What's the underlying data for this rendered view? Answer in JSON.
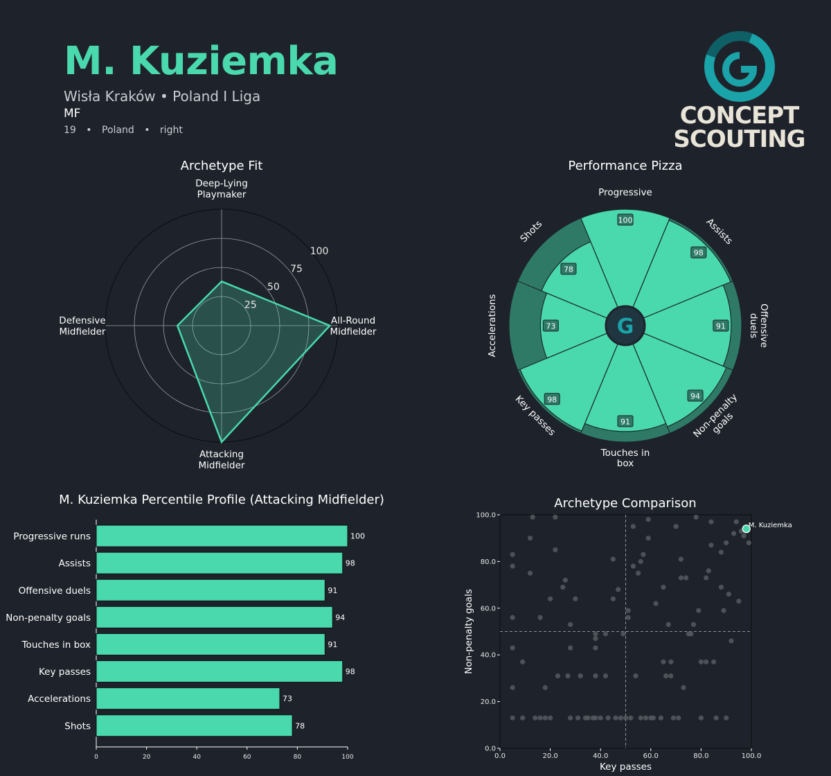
{
  "header": {
    "name": "M. Kuziemka",
    "club_league": "Wisła Kraków • Poland I Liga",
    "position": "MF",
    "age": "19",
    "sep1": "•",
    "nationality": "Poland",
    "sep2": "•",
    "foot": "right"
  },
  "logo": {
    "line1": "CONCEPT",
    "line2": "SCOUTING",
    "glyph": "G",
    "accent": "#1aa3a8"
  },
  "colors": {
    "background": "#1e232b",
    "accent": "#4ad9ad",
    "pizza_fill": "#4ad9ad",
    "pizza_track": "#2f7a67",
    "scatter_points": "#555a60"
  },
  "chart_data": [
    {
      "id": "radar",
      "type": "radar",
      "title": "Archetype Fit",
      "axes": [
        {
          "label": [
            "Deep-Lying",
            "Playmaker"
          ],
          "value": 38
        },
        {
          "label": [
            "All-Round",
            "Midfielder"
          ],
          "value": 93
        },
        {
          "label": [
            "Attacking",
            "Midfielder"
          ],
          "value": 100
        },
        {
          "label": [
            "Defensive",
            "Midfielder"
          ],
          "value": 38
        }
      ],
      "rings": [
        25,
        50,
        75,
        100
      ],
      "ring_labels": [
        "25",
        "50",
        "75",
        "100"
      ],
      "range": [
        0,
        100
      ]
    },
    {
      "id": "pizza",
      "type": "pizza",
      "title": "Performance Pizza",
      "center_glyph": "G",
      "slices": [
        {
          "label": [
            "Progressive"
          ],
          "value": 100
        },
        {
          "label": [
            "Assists"
          ],
          "value": 98
        },
        {
          "label": [
            "Offensive",
            "duels"
          ],
          "value": 91
        },
        {
          "label": [
            "Non-penalty",
            "goals"
          ],
          "value": 94
        },
        {
          "label": [
            "Touches in",
            "box"
          ],
          "value": 91
        },
        {
          "label": [
            "Key passes"
          ],
          "value": 98
        },
        {
          "label": [
            "Accelerations"
          ],
          "value": 73
        },
        {
          "label": [
            "Shots"
          ],
          "value": 78
        }
      ],
      "range": [
        0,
        100
      ]
    },
    {
      "id": "bars",
      "type": "bar",
      "orientation": "horizontal",
      "title": "M. Kuziemka Percentile Profile (Attacking Midfielder)",
      "categories": [
        "Progressive runs",
        "Assists",
        "Offensive duels",
        "Non-penalty goals",
        "Touches in box",
        "Key passes",
        "Accelerations",
        "Shots"
      ],
      "values": [
        100,
        98,
        91,
        94,
        91,
        98,
        73,
        78
      ],
      "xlim": [
        0,
        100
      ],
      "xticks": [
        0,
        20,
        40,
        60,
        80,
        100
      ],
      "xtick_labels": [
        "0",
        "20",
        "40",
        "60",
        "80",
        "100"
      ]
    },
    {
      "id": "scatter",
      "type": "scatter",
      "title": "Archetype Comparison",
      "xlabel": "Key passes",
      "ylabel": "Non-penalty goals",
      "xlim": [
        0,
        100
      ],
      "ylim": [
        0,
        100
      ],
      "xticks": [
        0,
        20,
        40,
        60,
        80,
        100
      ],
      "xtick_labels": [
        "0.0",
        "20.0",
        "40.0",
        "60.0",
        "80.0",
        "100.0"
      ],
      "yticks": [
        0,
        20,
        40,
        60,
        80,
        100
      ],
      "ytick_labels": [
        "0.0",
        "20.0",
        "40.0",
        "60.0",
        "80.0",
        "100.0"
      ],
      "ref_x": 50,
      "ref_y": 50,
      "highlight": {
        "label": "M. Kuziemka",
        "x": 98,
        "y": 94
      },
      "points": [
        [
          5,
          83
        ],
        [
          5,
          78
        ],
        [
          5,
          56
        ],
        [
          5,
          43
        ],
        [
          5,
          26
        ],
        [
          5,
          13
        ],
        [
          9,
          13
        ],
        [
          9,
          37
        ],
        [
          12,
          75
        ],
        [
          12,
          90
        ],
        [
          13,
          99
        ],
        [
          14,
          13
        ],
        [
          16,
          13
        ],
        [
          16,
          56
        ],
        [
          18,
          26
        ],
        [
          18,
          13
        ],
        [
          20,
          13
        ],
        [
          20,
          64
        ],
        [
          22,
          99
        ],
        [
          22,
          85
        ],
        [
          23,
          31
        ],
        [
          25,
          69
        ],
        [
          26,
          72
        ],
        [
          27,
          31
        ],
        [
          28,
          13
        ],
        [
          28,
          53
        ],
        [
          28,
          43
        ],
        [
          30,
          64
        ],
        [
          31,
          13
        ],
        [
          32,
          31
        ],
        [
          34,
          13
        ],
        [
          35,
          13
        ],
        [
          37,
          13
        ],
        [
          38,
          47
        ],
        [
          38,
          43
        ],
        [
          38,
          31
        ],
        [
          38,
          13
        ],
        [
          38,
          49
        ],
        [
          40,
          13
        ],
        [
          42,
          49
        ],
        [
          42,
          31
        ],
        [
          43,
          13
        ],
        [
          45,
          81
        ],
        [
          45,
          64
        ],
        [
          46,
          13
        ],
        [
          47,
          68
        ],
        [
          48,
          13
        ],
        [
          49,
          49
        ],
        [
          50,
          13
        ],
        [
          51,
          56
        ],
        [
          51,
          59
        ],
        [
          52,
          13
        ],
        [
          53,
          95
        ],
        [
          53,
          78
        ],
        [
          54,
          31
        ],
        [
          55,
          75
        ],
        [
          56,
          13
        ],
        [
          56,
          80
        ],
        [
          57,
          83
        ],
        [
          58,
          13
        ],
        [
          59,
          90
        ],
        [
          59,
          98
        ],
        [
          60,
          13
        ],
        [
          61,
          13
        ],
        [
          62,
          62
        ],
        [
          64,
          13
        ],
        [
          65,
          37
        ],
        [
          65,
          69
        ],
        [
          66,
          31
        ],
        [
          67,
          53
        ],
        [
          68,
          37
        ],
        [
          68,
          31
        ],
        [
          69,
          13
        ],
        [
          70,
          95
        ],
        [
          71,
          13
        ],
        [
          72,
          73
        ],
        [
          72,
          81
        ],
        [
          73,
          26
        ],
        [
          74,
          73
        ],
        [
          75,
          49
        ],
        [
          76,
          49
        ],
        [
          77,
          53
        ],
        [
          78,
          99
        ],
        [
          79,
          59
        ],
        [
          80,
          37
        ],
        [
          80,
          13
        ],
        [
          82,
          37
        ],
        [
          82,
          73
        ],
        [
          83,
          76
        ],
        [
          84,
          97
        ],
        [
          84,
          87
        ],
        [
          85,
          37
        ],
        [
          86,
          13
        ],
        [
          88,
          69
        ],
        [
          88,
          84
        ],
        [
          89,
          59
        ],
        [
          90,
          88
        ],
        [
          90,
          13
        ],
        [
          91,
          66
        ],
        [
          92,
          46
        ],
        [
          93,
          92
        ],
        [
          94,
          97
        ],
        [
          95,
          63
        ],
        [
          96,
          93
        ],
        [
          97,
          91
        ],
        [
          99,
          88
        ]
      ]
    }
  ]
}
